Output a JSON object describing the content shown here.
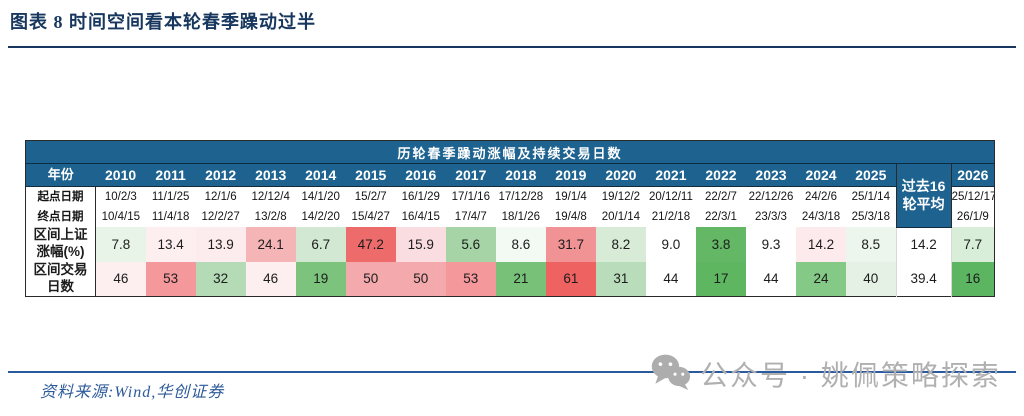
{
  "figure": {
    "title": "图表 8  时间空间看本轮春季躁动过半",
    "source": "资料来源:Wind,华创证券",
    "watermark_text": "公众号 · 姚佩策略探索"
  },
  "colors": {
    "header_bg": "#1e6390",
    "title_ink": "#17375e",
    "rule_bottom": "#2b5b9f",
    "source_ink": "#2d5a9b",
    "watermark": "#b0b0b0",
    "strong_red": "#ed6b6b",
    "strong_green": "#5fb661"
  },
  "chart_data": {
    "type": "table",
    "title": "历轮春季躁动涨幅及持续交易日数",
    "corner_label": "年份",
    "row_labels": {
      "start": "起点日期",
      "end": "终点日期",
      "gain": "区间上证\n涨幅(%)",
      "days": "区间交易\n日数"
    },
    "columns": [
      {
        "year": "2010",
        "start": "10/2/3",
        "end": "10/4/15",
        "gain": "7.8",
        "gain_bg": "#e9f4e9",
        "days": "46",
        "days_bg": "#fdeeef"
      },
      {
        "year": "2011",
        "start": "11/1/25",
        "end": "11/4/18",
        "gain": "13.4",
        "gain_bg": "#fdeeef",
        "days": "53",
        "days_bg": "#f4989c"
      },
      {
        "year": "2012",
        "start": "12/1/6",
        "end": "12/2/27",
        "gain": "13.9",
        "gain_bg": "#fdecee",
        "days": "32",
        "days_bg": "#b5dbb6"
      },
      {
        "year": "2013",
        "start": "12/12/4",
        "end": "13/2/8",
        "gain": "24.1",
        "gain_bg": "#f5b4b6",
        "days": "46",
        "days_bg": "#fdeeef"
      },
      {
        "year": "2014",
        "start": "14/1/20",
        "end": "14/2/20",
        "gain": "6.7",
        "gain_bg": "#d2e8d2",
        "days": "19",
        "days_bg": "#7cc47e"
      },
      {
        "year": "2015",
        "start": "15/2/7",
        "end": "15/4/27",
        "gain": "47.2",
        "gain_bg": "#ed6b6b",
        "days": "50",
        "days_bg": "#f4a9ad"
      },
      {
        "year": "2016",
        "start": "16/1/29",
        "end": "16/4/15",
        "gain": "15.9",
        "gain_bg": "#fadde0",
        "days": "50",
        "days_bg": "#f4a9ad"
      },
      {
        "year": "2017",
        "start": "17/1/16",
        "end": "17/4/7",
        "gain": "5.6",
        "gain_bg": "#a6d4a7",
        "days": "53",
        "days_bg": "#f4989c"
      },
      {
        "year": "2018",
        "start": "17/12/28",
        "end": "18/1/26",
        "gain": "8.6",
        "gain_bg": "#f3faf3",
        "days": "21",
        "days_bg": "#77c179"
      },
      {
        "year": "2019",
        "start": "19/1/4",
        "end": "19/4/8",
        "gain": "31.7",
        "gain_bg": "#f19294",
        "days": "61",
        "days_bg": "#ee6262"
      },
      {
        "year": "2020",
        "start": "19/12/2",
        "end": "20/1/14",
        "gain": "8.2",
        "gain_bg": "#d7ebd7",
        "days": "31",
        "days_bg": "#b9ddba"
      },
      {
        "year": "2021",
        "start": "20/12/11",
        "end": "21/2/18",
        "gain": "9.0",
        "gain_bg": "#ffffff",
        "days": "44",
        "days_bg": "#ffffff"
      },
      {
        "year": "2022",
        "start": "22/2/7",
        "end": "22/3/1",
        "gain": "3.8",
        "gain_bg": "#63b765",
        "days": "17",
        "days_bg": "#5fb661"
      },
      {
        "year": "2023",
        "start": "22/12/26",
        "end": "23/3/3",
        "gain": "9.3",
        "gain_bg": "#ffffff",
        "days": "44",
        "days_bg": "#ffffff"
      },
      {
        "year": "2024",
        "start": "24/2/6",
        "end": "24/3/18",
        "gain": "14.2",
        "gain_bg": "#fdeaec",
        "days": "24",
        "days_bg": "#84c986"
      },
      {
        "year": "2025",
        "start": "25/1/14",
        "end": "25/3/18",
        "gain": "8.5",
        "gain_bg": "#ecf6ec",
        "days": "40",
        "days_bg": "#e4f1e4"
      }
    ],
    "average_column": {
      "label": "过去16\n轮平均",
      "gain": "14.2",
      "gain_bg": "#ffffff",
      "days": "39.4",
      "days_bg": "#ffffff"
    },
    "column_2026": {
      "year": "2026",
      "start": "25/12/17",
      "end": "26/1/9",
      "gain": "7.7",
      "gain_bg": "#d8eed8",
      "days": "16",
      "days_bg": "#5cb661"
    }
  }
}
